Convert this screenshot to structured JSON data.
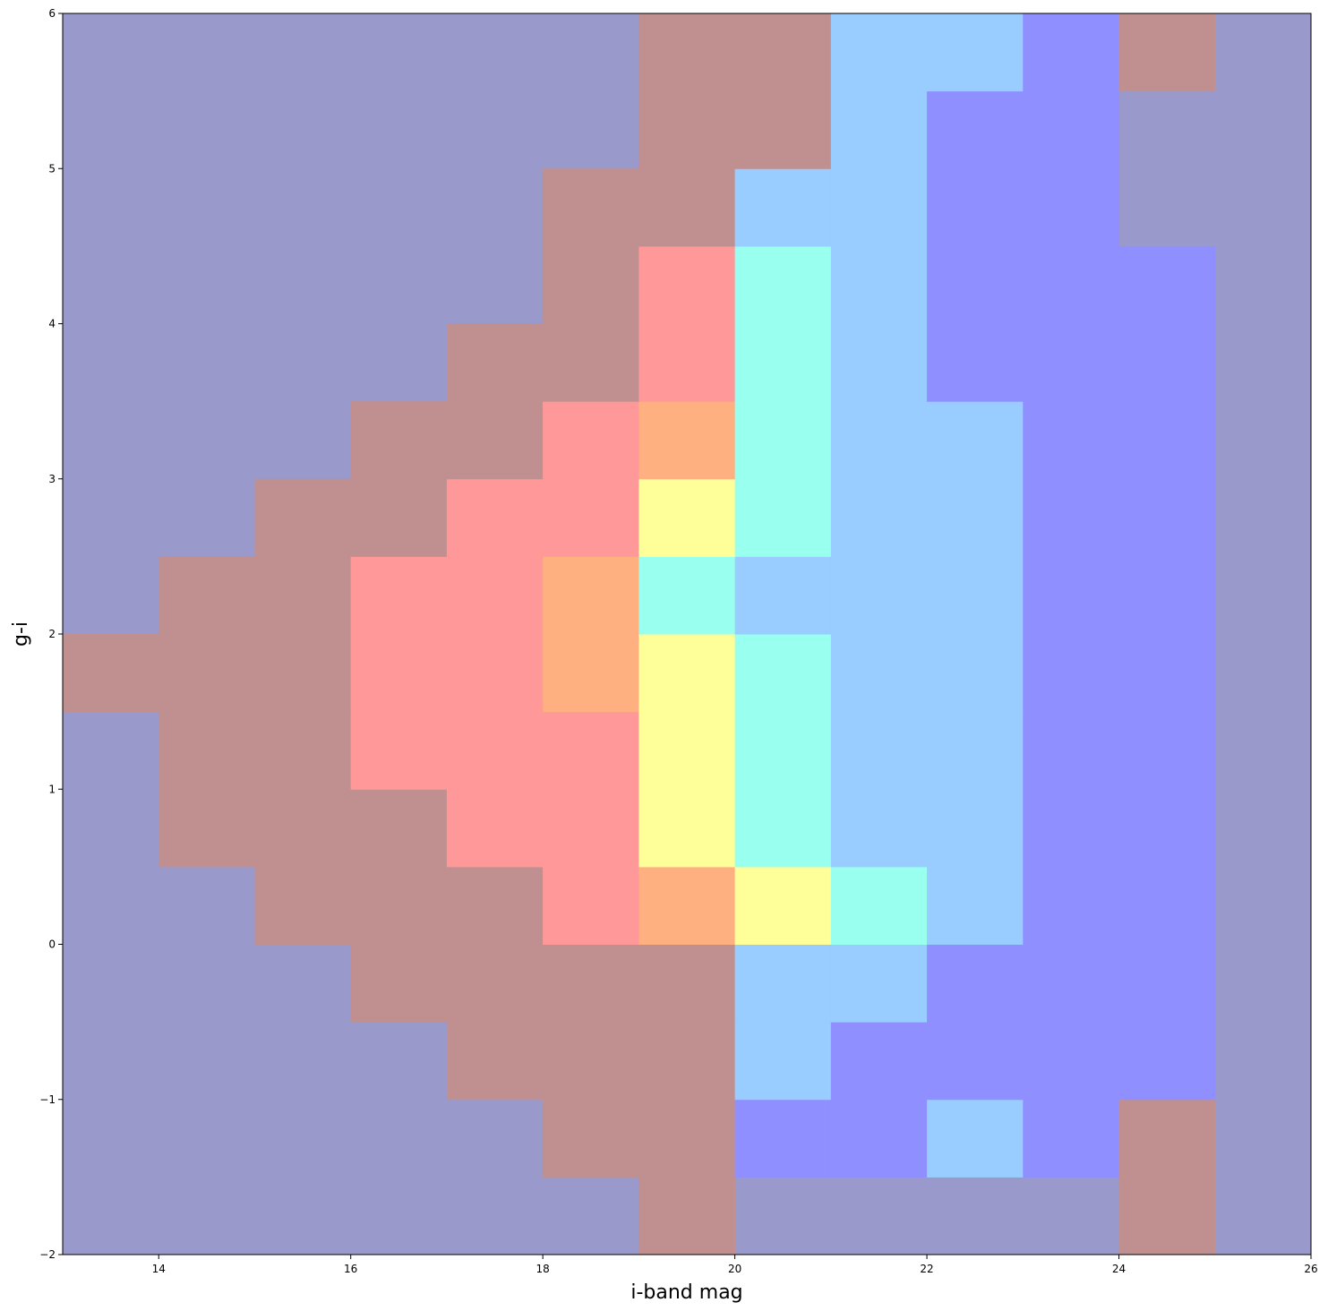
{
  "chart_data": {
    "type": "heatmap",
    "xlabel": "i-band mag",
    "ylabel": "g-i",
    "xlim": [
      13,
      26
    ],
    "ylim": [
      -2,
      6
    ],
    "xticks": [
      14,
      16,
      18,
      20,
      22,
      24,
      26
    ],
    "yticks": [
      {
        "value": -2,
        "label": "−2"
      },
      {
        "value": -1,
        "label": "−1"
      },
      0,
      1,
      2,
      3,
      4,
      5,
      6
    ],
    "xbins": [
      13,
      14,
      15,
      16,
      17,
      18,
      19,
      20,
      21,
      22,
      23,
      24,
      25,
      26
    ],
    "ybins": [
      -2,
      -1.5,
      -1,
      -0.5,
      0,
      0.5,
      1,
      1.5,
      2,
      2.5,
      3,
      3.5,
      4,
      4.5,
      5,
      5.5,
      6
    ],
    "background": "#9999cc",
    "colors": [
      "#9999cc",
      "#8f8fff",
      "#99ccff",
      "#99ffee",
      "#ffff99",
      "#ffb080",
      "#ff9999",
      "#c09090"
    ],
    "values": [
      [
        0,
        0,
        0,
        0,
        0,
        0,
        7,
        0,
        0,
        0,
        0,
        7,
        0
      ],
      [
        0,
        0,
        0,
        0,
        0,
        7,
        7,
        1,
        1,
        2,
        1,
        7,
        0
      ],
      [
        0,
        0,
        0,
        0,
        7,
        7,
        7,
        2,
        1,
        1,
        1,
        1,
        0
      ],
      [
        0,
        0,
        0,
        7,
        7,
        7,
        7,
        2,
        2,
        1,
        1,
        1,
        0
      ],
      [
        0,
        0,
        7,
        7,
        7,
        6,
        5,
        4,
        3,
        2,
        1,
        1,
        0
      ],
      [
        0,
        7,
        7,
        7,
        6,
        6,
        4,
        3,
        2,
        2,
        1,
        1,
        0
      ],
      [
        0,
        7,
        7,
        6,
        6,
        6,
        4,
        3,
        2,
        2,
        1,
        1,
        0
      ],
      [
        7,
        7,
        7,
        6,
        6,
        5,
        4,
        3,
        2,
        2,
        1,
        1,
        0
      ],
      [
        0,
        7,
        7,
        6,
        6,
        5,
        3,
        2,
        2,
        2,
        1,
        1,
        0
      ],
      [
        0,
        0,
        7,
        7,
        6,
        6,
        4,
        3,
        2,
        2,
        1,
        1,
        0
      ],
      [
        0,
        0,
        0,
        7,
        7,
        6,
        5,
        3,
        2,
        2,
        1,
        1,
        0
      ],
      [
        0,
        0,
        0,
        0,
        7,
        7,
        6,
        3,
        2,
        1,
        1,
        1,
        0
      ],
      [
        0,
        0,
        0,
        0,
        0,
        7,
        6,
        3,
        2,
        1,
        1,
        1,
        0
      ],
      [
        0,
        0,
        0,
        0,
        0,
        7,
        7,
        2,
        2,
        1,
        1,
        0,
        0
      ],
      [
        0,
        0,
        0,
        0,
        0,
        0,
        7,
        7,
        2,
        1,
        1,
        0,
        0
      ],
      [
        0,
        0,
        0,
        0,
        0,
        0,
        7,
        7,
        2,
        2,
        1,
        7,
        0
      ]
    ]
  }
}
